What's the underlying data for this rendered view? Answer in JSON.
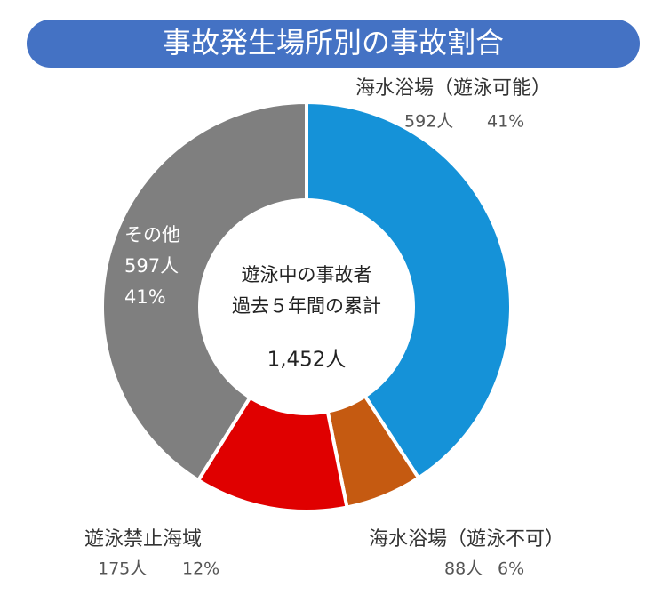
{
  "chart_data": {
    "type": "donut",
    "title": "事故発生場所別の事故割合",
    "categories": [
      "海水浴場（遊泳可能）",
      "海水浴場（遊泳不可）",
      "遊泳禁止海域",
      "その他"
    ],
    "values": [
      592,
      88,
      175,
      597
    ],
    "value_labels": [
      "592人",
      "88人",
      "175人",
      "597人"
    ],
    "percent_labels": [
      "41%",
      "6%",
      "12%",
      "41%"
    ],
    "colors": [
      "#1592d8",
      "#c55a11",
      "#e00000",
      "#7f7f7f"
    ],
    "center_lines": [
      "遊泳中の事故者",
      "過去５年間の累計"
    ],
    "total": {
      "value": 1452,
      "label": "1,452人"
    }
  }
}
